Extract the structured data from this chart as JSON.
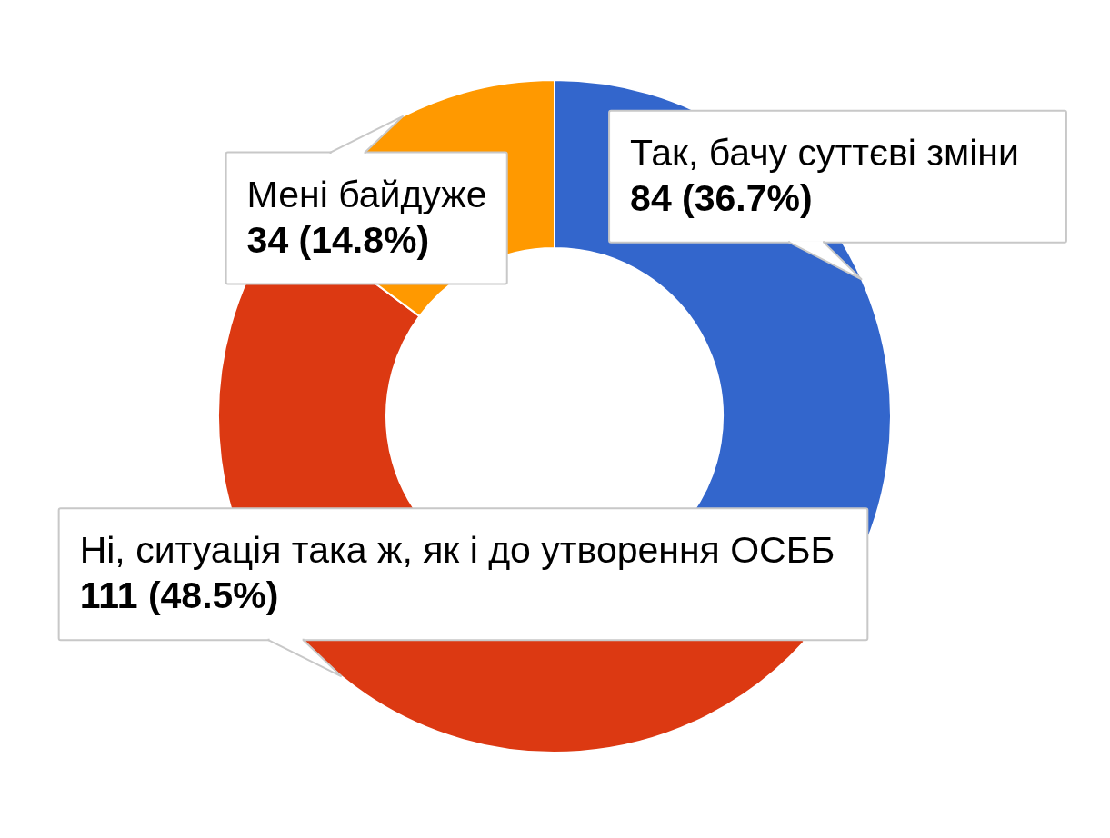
{
  "chart_data": {
    "type": "donut",
    "categories": [
      "Так, бачу суттєві зміни",
      "Ні, ситуація така ж, як і до утворення ОСББ",
      "Мені байдуже"
    ],
    "values": [
      84,
      111,
      34
    ],
    "colors": [
      "#3366cc",
      "#dc3912",
      "#ff9900"
    ],
    "value_labels": [
      "84 (36.7%)",
      "111 (48.5%)",
      "34 (14.8%)"
    ]
  }
}
